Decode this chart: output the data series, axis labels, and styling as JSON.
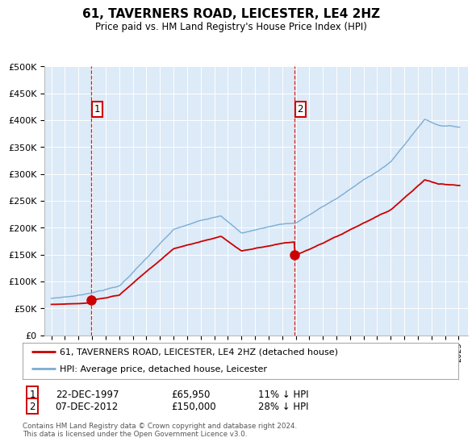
{
  "title": "61, TAVERNERS ROAD, LEICESTER, LE4 2HZ",
  "subtitle": "Price paid vs. HM Land Registry's House Price Index (HPI)",
  "legend_line1": "61, TAVERNERS ROAD, LEICESTER, LE4 2HZ (detached house)",
  "legend_line2": "HPI: Average price, detached house, Leicester",
  "annotation1_label": "1",
  "annotation1_date": "22-DEC-1997",
  "annotation1_price": "£65,950",
  "annotation1_hpi": "11% ↓ HPI",
  "annotation2_label": "2",
  "annotation2_date": "07-DEC-2012",
  "annotation2_price": "£150,000",
  "annotation2_hpi": "28% ↓ HPI",
  "footnote": "Contains HM Land Registry data © Crown copyright and database right 2024.\nThis data is licensed under the Open Government Licence v3.0.",
  "sale1_year": 1997.95,
  "sale1_price": 65950,
  "sale2_year": 2012.92,
  "sale2_price": 150000,
  "hpi_color": "#7aadd4",
  "price_color": "#cc0000",
  "bg_color": "#ddeaf7",
  "plot_bg": "#ffffff",
  "ylim_min": 0,
  "ylim_max": 500000
}
